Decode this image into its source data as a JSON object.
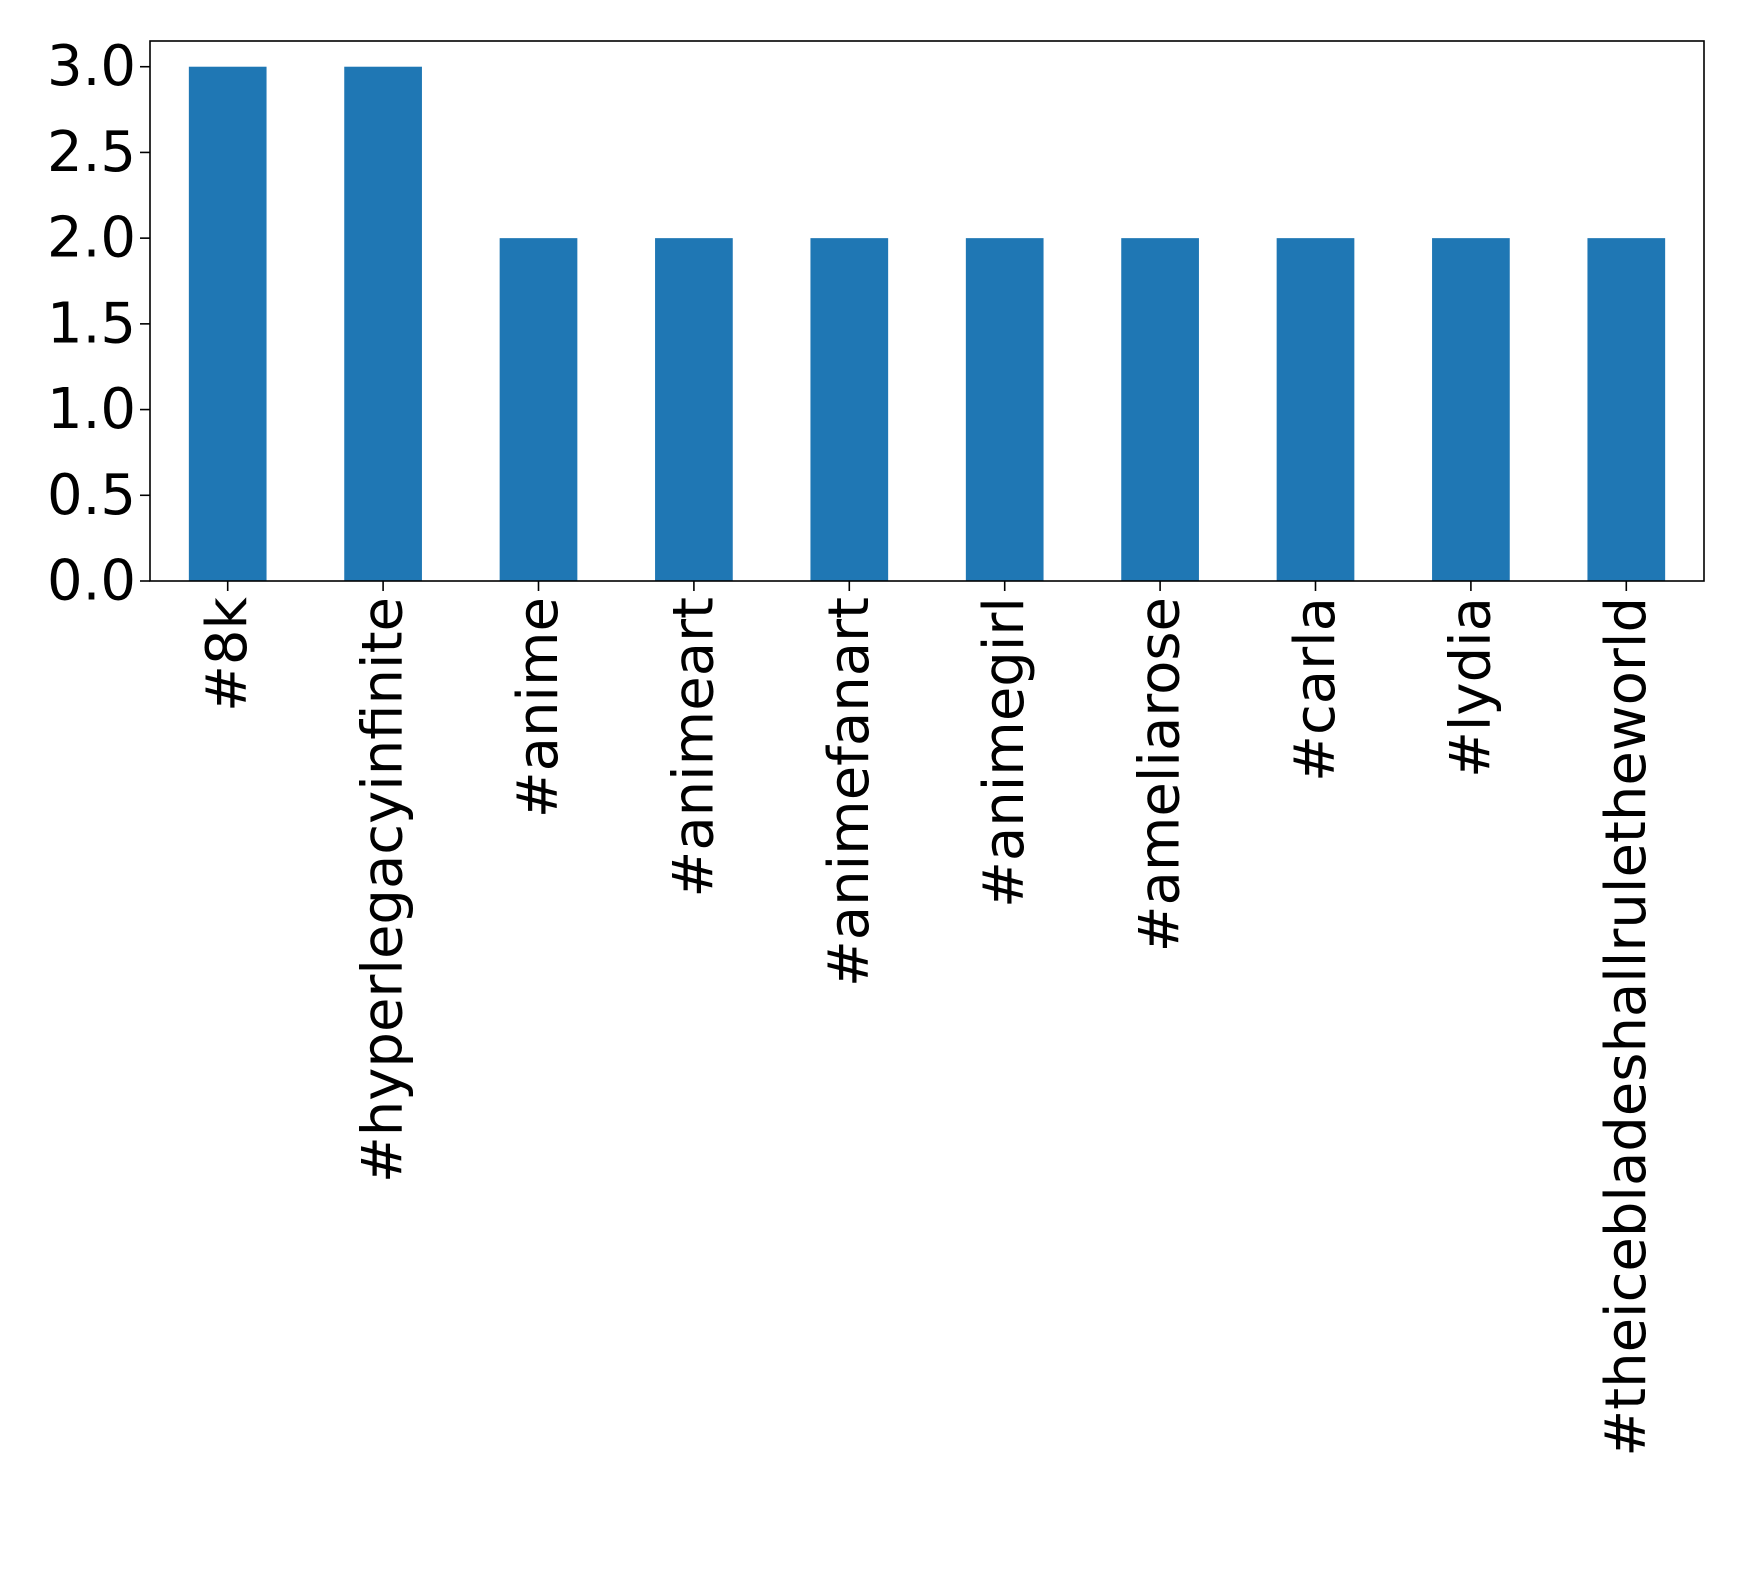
{
  "chart_data": {
    "type": "bar",
    "categories": [
      "#8k",
      "#hyperlegacyinfinite",
      "#anime",
      "#animeart",
      "#animefanart",
      "#animegirl",
      "#ameliarose",
      "#carla",
      "#lydia",
      "#theicebladeshallruletheworld"
    ],
    "values": [
      3,
      3,
      2,
      2,
      2,
      2,
      2,
      2,
      2,
      2
    ],
    "title": "",
    "xlabel": "",
    "ylabel": "",
    "ylim": [
      0,
      3.15
    ],
    "yticks": [
      "0.0",
      "0.5",
      "1.0",
      "1.5",
      "2.0",
      "2.5",
      "3.0"
    ],
    "grid": false,
    "bar_color": "#1f77b4"
  }
}
